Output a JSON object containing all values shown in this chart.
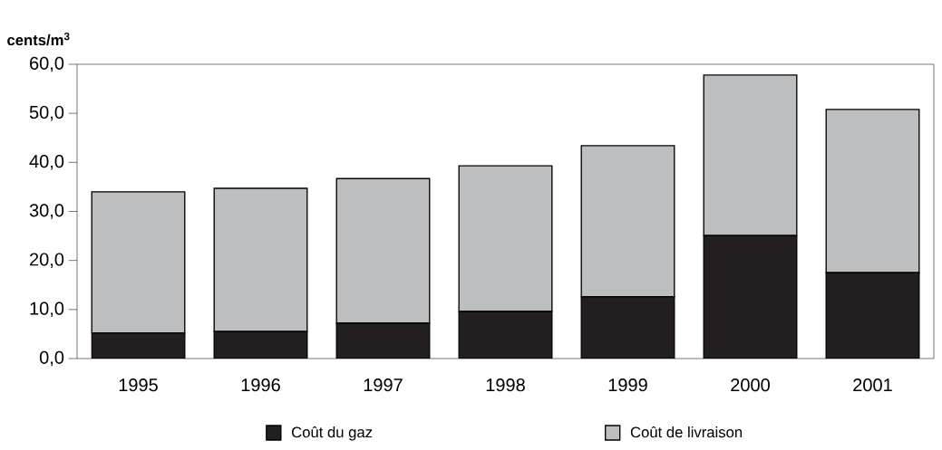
{
  "chart_data": {
    "type": "bar",
    "stacked": true,
    "ylabel": "**cents/m$^{3}$**",
    "categories": [
      "1995",
      "1996",
      "1997",
      "1998",
      "1999",
      "2000",
      "2001"
    ],
    "series": [
      {
        "name": "Coût du gaz",
        "color": "#231f20",
        "values": [
          5.2,
          5.5,
          7.2,
          9.6,
          12.6,
          25.1,
          17.5
        ]
      },
      {
        "name": "Coût de livraison",
        "color": "#bcbec0",
        "values": [
          28.8,
          29.2,
          29.5,
          29.7,
          30.8,
          32.7,
          33.3
        ]
      }
    ],
    "ylim": [
      0,
      60
    ],
    "yticks": [
      {
        "value": 0,
        "label": "0,0"
      },
      {
        "value": 10,
        "label": "10,0"
      },
      {
        "value": 20,
        "label": "20,0"
      },
      {
        "value": 30,
        "label": "30,0"
      },
      {
        "value": 40,
        "label": "40,0"
      },
      {
        "value": 50,
        "label": "50,0"
      },
      {
        "value": 60,
        "label": "60,0"
      }
    ],
    "grid": false,
    "legend": "bottom"
  }
}
